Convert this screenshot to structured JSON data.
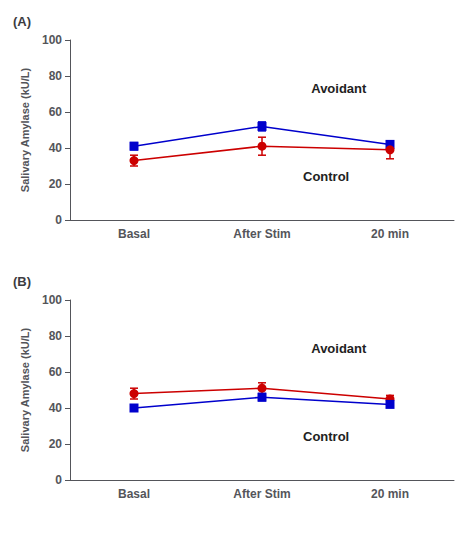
{
  "chart_data": [
    {
      "type": "line",
      "title": "(A)",
      "categories": [
        "Basal",
        "After Stim",
        "20 min"
      ],
      "ylabel": "Salivary Amylase (kU/L)",
      "ylim": [
        0,
        100
      ],
      "yticks": [
        0,
        20,
        40,
        60,
        80,
        100
      ],
      "grid": false,
      "series": [
        {
          "name": "Avoidant",
          "color": "#0000CC",
          "marker": "square",
          "values": [
            41,
            52,
            42
          ],
          "yerr": [
            2,
            2.5,
            1.5
          ]
        },
        {
          "name": "Control",
          "color": "#CC0000",
          "marker": "circle",
          "values": [
            33,
            41,
            39
          ],
          "yerr": [
            3,
            5,
            5
          ]
        }
      ]
    },
    {
      "type": "line",
      "title": "(B)",
      "categories": [
        "Basal",
        "After Stim",
        "20 min"
      ],
      "ylabel": "Salivary Amylase (kU/L)",
      "ylim": [
        0,
        100
      ],
      "yticks": [
        0,
        20,
        40,
        60,
        80,
        100
      ],
      "grid": false,
      "series": [
        {
          "name": "Avoidant",
          "color": "#CC0000",
          "marker": "circle",
          "values": [
            48,
            51,
            45
          ],
          "yerr": [
            3,
            3,
            2
          ]
        },
        {
          "name": "Control",
          "color": "#0000CC",
          "marker": "square",
          "values": [
            40,
            46,
            42
          ],
          "yerr": [
            1.5,
            2,
            1.5
          ]
        }
      ]
    }
  ]
}
